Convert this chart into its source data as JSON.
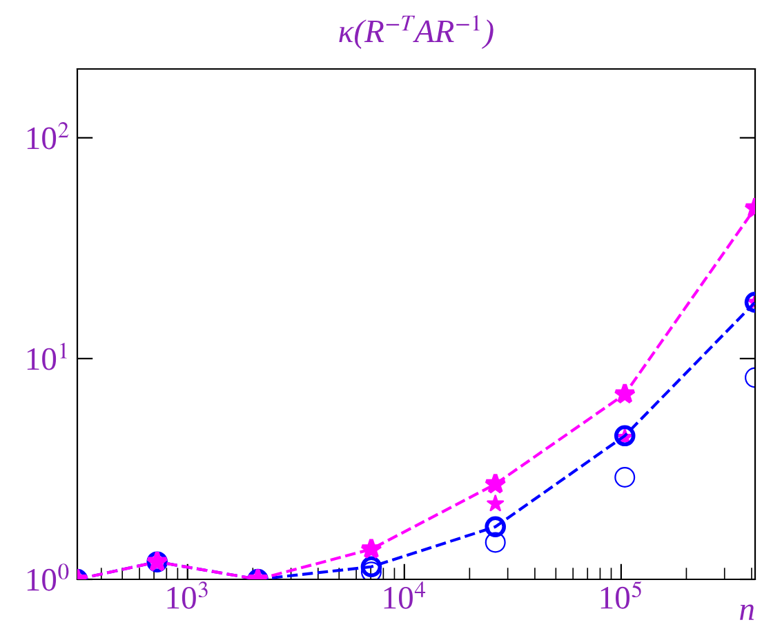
{
  "chart_data": {
    "type": "line",
    "title": "κ(R$^{−T}$AR$^{−1}$)",
    "xlabel": "n",
    "log": "xy",
    "x": [
      310,
      724,
      2110,
      7040,
      26300,
      104000,
      415000
    ],
    "xlim": [
      310,
      415000
    ],
    "xticks": [
      {
        "value": 1000,
        "label": "10$^{3}$"
      },
      {
        "value": 10000,
        "label": "10$^{4}$"
      },
      {
        "value": 100000,
        "label": "10$^{5}$"
      }
    ],
    "ylim": [
      1,
      205
    ],
    "yticks": [
      {
        "value": 1,
        "label": "10$^{0}$"
      },
      {
        "value": 10,
        "label": "10$^{1}$"
      },
      {
        "value": 100,
        "label": "10$^{2}$"
      }
    ],
    "grid": false,
    "series": [
      {
        "type": "scatter",
        "color": "#0000ff",
        "marker": "circle",
        "values": [
          null,
          null,
          null,
          1.08,
          1.47,
          2.9,
          8.2
        ]
      },
      {
        "type": "scatter",
        "color": "#ff00ff",
        "marker": "star",
        "values": [
          1.0,
          1.2,
          1.0,
          null,
          2.2,
          4.4,
          18
        ]
      },
      {
        "color": "#0000ff",
        "marker": "circle",
        "line_style": "dashed",
        "values": [
          1.0,
          1.2,
          1.0,
          1.14,
          1.73,
          4.47,
          18
        ]
      },
      {
        "color": "#ff00ff",
        "marker": "star",
        "line_style": "dashed",
        "values": [
          1.0,
          1.2,
          1.0,
          1.37,
          2.7,
          6.9,
          48
        ]
      }
    ]
  }
}
